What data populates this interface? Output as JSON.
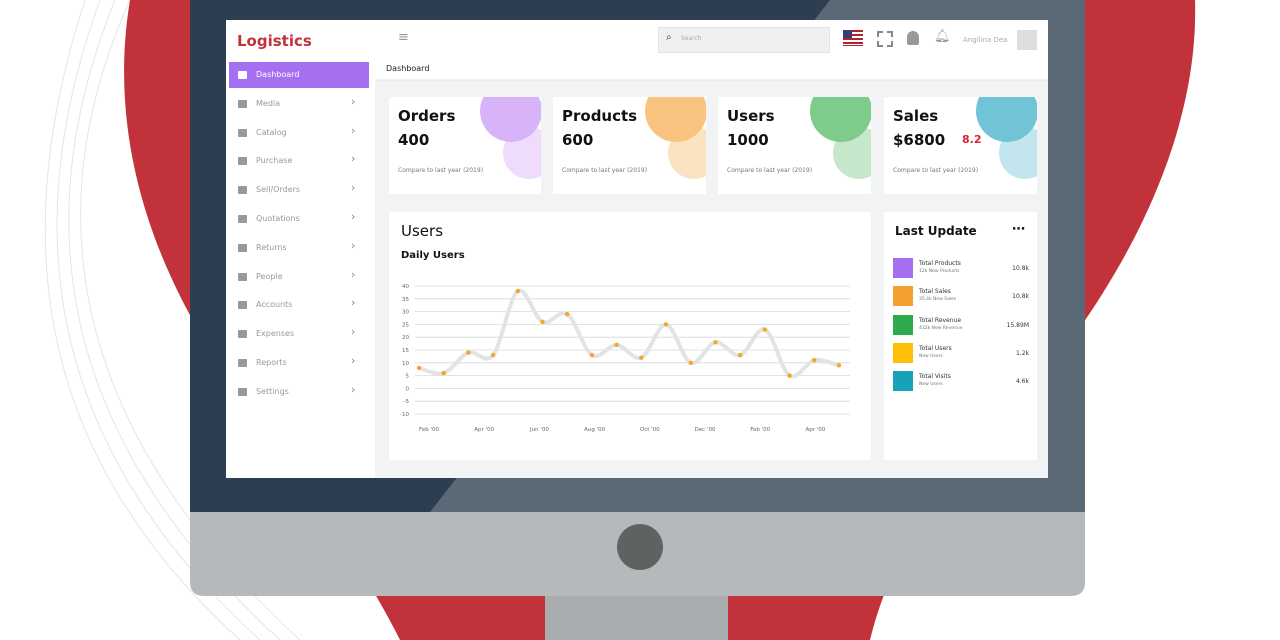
{
  "sidebar": {
    "brand": "Logistics",
    "menu": [
      "Dashboard",
      "Media",
      "Catalog",
      "Purchase",
      "Sell/Orders",
      "Quotations",
      "Returns",
      "People",
      "Accounts",
      "Expenses",
      "Reports",
      "Settings"
    ]
  },
  "header": {
    "search_placeholder": "Search",
    "user": "Angilina Dea"
  },
  "breadcrumb": "Dashboard",
  "cards": [
    {
      "title": "Orders",
      "value": 400,
      "note": "Compare to last year (2019)",
      "color": "#d9b3f7",
      "color_light": "#efdcfc"
    },
    {
      "title": "Products",
      "value": 600,
      "note": "Compare to last year (2019)",
      "color": "#f8c47f",
      "color_light": "#fbe3c2"
    },
    {
      "title": "Users",
      "value": 1000,
      "note": "Compare to last year (2019)",
      "color": "#7fcb8c",
      "color_light": "#c5e8cb"
    },
    {
      "title": "Sales",
      "value": "$6800",
      "change": 8.2,
      "note": "Compare to last year (2019)",
      "color": "#70c4d6",
      "color_light": "#c3e6ee"
    }
  ],
  "users_panel": {
    "title": "Users",
    "chart": {
      "type": "line",
      "title": "Daily Users",
      "x_labels": [
        "Feb '00",
        "Apr '00",
        "Jun '00",
        "Aug '00",
        "Oct '00",
        "Dec '00",
        "Feb '00",
        "Apr '00"
      ],
      "values": [
        8,
        6,
        14,
        13,
        38,
        26,
        29,
        13,
        17,
        12,
        25,
        10,
        18,
        13,
        23,
        5,
        11,
        9
      ],
      "color": "#f5a623",
      "line_color": "#e3e3e3",
      "ylim": [
        -10,
        40
      ],
      "yticks": [
        40,
        35,
        30,
        25,
        20,
        15,
        10,
        5,
        0,
        -5,
        -10
      ],
      "grid": true
    }
  },
  "last_update": {
    "title": "Last Update",
    "items": [
      {
        "title": "Total Products",
        "subtitle": "12k New Products",
        "value": "10.8k",
        "color": "#a66ef0"
      },
      {
        "title": "Total Sales",
        "subtitle": "35.4k New Sales",
        "value": "10.8k",
        "color": "#f4a030"
      },
      {
        "title": "Total Revenue",
        "subtitle": "432k New Revenue",
        "value": "15.89M",
        "color": "#2eaa4e"
      },
      {
        "title": "Total Users",
        "subtitle": "New Users",
        "value": "1.2k",
        "color": "#ffc107"
      },
      {
        "title": "Total Visits",
        "subtitle": "New Users",
        "value": "4.6k",
        "color": "#17a2b8"
      }
    ]
  }
}
